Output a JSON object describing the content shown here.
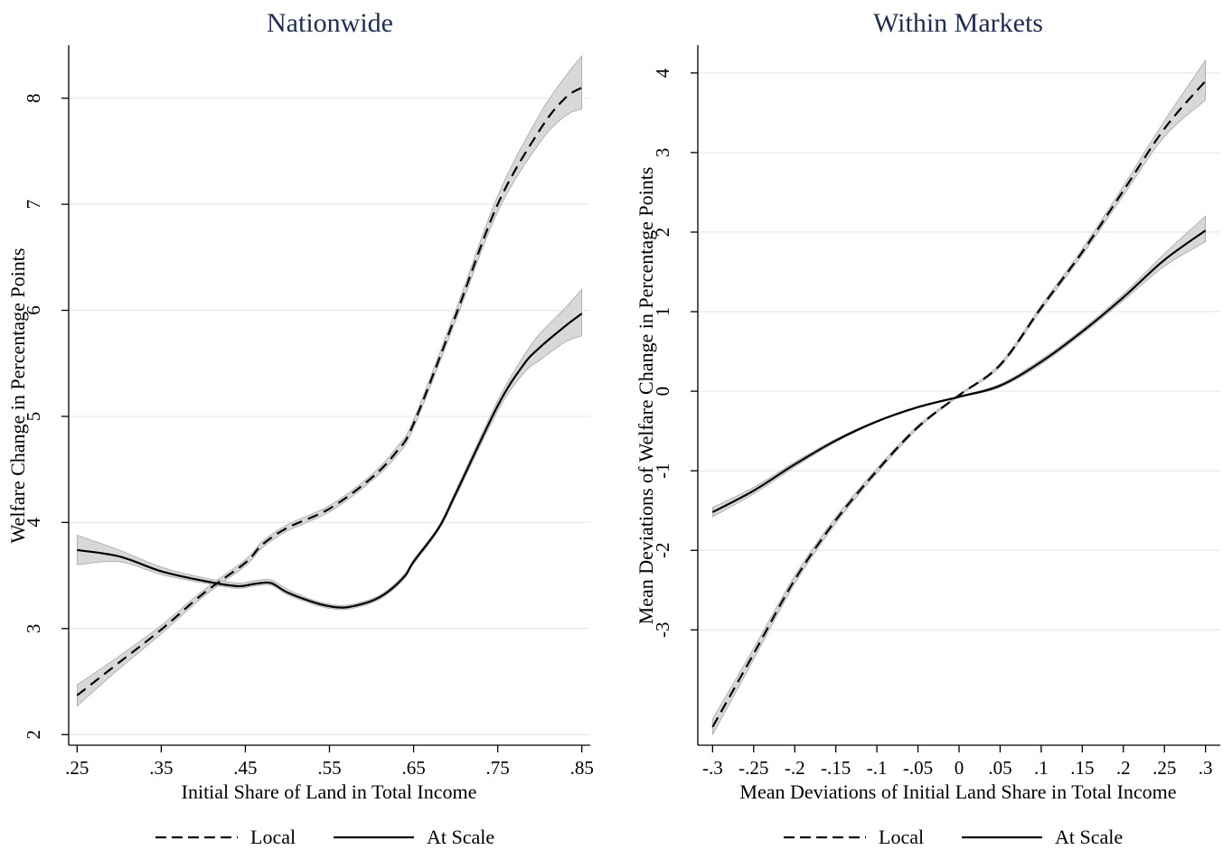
{
  "chart_data": [
    {
      "type": "line",
      "title": "Nationwide",
      "xlabel": "Initial Share of Land in Total Income",
      "ylabel": "Welfare Change in Percentage Points",
      "xlim": [
        0.24,
        0.86
      ],
      "ylim": [
        1.9,
        8.5
      ],
      "x_ticks": [
        0.25,
        0.35,
        0.45,
        0.55,
        0.65,
        0.75,
        0.85
      ],
      "x_tick_labels": [
        ".25",
        ".35",
        ".45",
        ".55",
        ".65",
        ".75",
        ".85"
      ],
      "y_ticks": [
        2,
        3,
        4,
        5,
        6,
        7,
        8
      ],
      "y_tick_labels": [
        "2",
        "3",
        "4",
        "5",
        "6",
        "7",
        "8"
      ],
      "grid": true,
      "legend_position": "bottom",
      "series": [
        {
          "name": "Local",
          "style": "dashed",
          "x": [
            0.25,
            0.3,
            0.35,
            0.4,
            0.45,
            0.47,
            0.5,
            0.55,
            0.6,
            0.63,
            0.65,
            0.7,
            0.75,
            0.8,
            0.83,
            0.85
          ],
          "values": [
            2.37,
            2.68,
            2.99,
            3.33,
            3.62,
            3.79,
            3.95,
            4.13,
            4.42,
            4.67,
            4.93,
            5.95,
            7.0,
            7.7,
            8.0,
            8.1
          ],
          "ci_lower": [
            2.27,
            2.62,
            2.95,
            3.3,
            3.59,
            3.76,
            3.92,
            4.1,
            4.39,
            4.63,
            4.89,
            5.9,
            6.93,
            7.58,
            7.83,
            7.9
          ],
          "ci_upper": [
            2.47,
            2.74,
            3.03,
            3.36,
            3.65,
            3.82,
            3.98,
            4.16,
            4.45,
            4.71,
            4.97,
            6.0,
            7.08,
            7.85,
            8.2,
            8.4
          ]
        },
        {
          "name": "At Scale",
          "style": "solid",
          "x": [
            0.25,
            0.3,
            0.35,
            0.4,
            0.44,
            0.46,
            0.48,
            0.5,
            0.53,
            0.55,
            0.57,
            0.6,
            0.62,
            0.64,
            0.65,
            0.68,
            0.7,
            0.75,
            0.78,
            0.8,
            0.83,
            0.85
          ],
          "values": [
            3.74,
            3.68,
            3.54,
            3.45,
            3.4,
            3.42,
            3.43,
            3.34,
            3.25,
            3.21,
            3.2,
            3.26,
            3.35,
            3.5,
            3.63,
            3.95,
            4.27,
            5.1,
            5.48,
            5.65,
            5.85,
            5.97
          ],
          "ci_lower": [
            3.6,
            3.63,
            3.51,
            3.43,
            3.38,
            3.4,
            3.41,
            3.32,
            3.23,
            3.19,
            3.18,
            3.24,
            3.33,
            3.48,
            3.61,
            3.93,
            4.24,
            5.05,
            5.4,
            5.53,
            5.7,
            5.76
          ],
          "ci_upper": [
            3.88,
            3.74,
            3.58,
            3.48,
            3.43,
            3.45,
            3.46,
            3.37,
            3.27,
            3.23,
            3.22,
            3.28,
            3.37,
            3.52,
            3.65,
            3.97,
            4.3,
            5.15,
            5.56,
            5.78,
            6.02,
            6.2
          ]
        }
      ]
    },
    {
      "type": "line",
      "title": "Within Markets",
      "xlabel": "Mean Deviations of Initial Land Share in Total Income",
      "ylabel": "Mean Deviations of Welfare Change in Percentage Points",
      "xlim": [
        -0.318,
        0.318
      ],
      "ylim": [
        -4.45,
        4.35
      ],
      "x_ticks": [
        -0.3,
        -0.25,
        -0.2,
        -0.15,
        -0.1,
        -0.05,
        0,
        0.05,
        0.1,
        0.15,
        0.2,
        0.25,
        0.3
      ],
      "x_tick_labels": [
        "-.3",
        "-.25",
        "-.2",
        "-.15",
        "-.1",
        "-.05",
        "0",
        ".05",
        ".1",
        ".15",
        ".2",
        ".25",
        ".3"
      ],
      "y_ticks": [
        -3,
        -2,
        -1,
        0,
        1,
        2,
        3,
        4
      ],
      "y_tick_labels": [
        "-3",
        "-2",
        "-1",
        "0",
        "1",
        "2",
        "3",
        "4"
      ],
      "grid": true,
      "legend_position": "bottom",
      "series": [
        {
          "name": "Local",
          "style": "dashed",
          "x": [
            -0.3,
            -0.25,
            -0.2,
            -0.15,
            -0.1,
            -0.05,
            0,
            0.05,
            0.1,
            0.15,
            0.2,
            0.25,
            0.3
          ],
          "values": [
            -4.22,
            -3.3,
            -2.37,
            -1.62,
            -1.0,
            -0.45,
            -0.05,
            0.33,
            1.05,
            1.75,
            2.52,
            3.3,
            3.9
          ],
          "ci_lower": [
            -4.32,
            -3.37,
            -2.42,
            -1.66,
            -1.03,
            -0.47,
            -0.06,
            0.31,
            1.02,
            1.71,
            2.46,
            3.2,
            3.66
          ],
          "ci_upper": [
            -4.12,
            -3.23,
            -2.32,
            -1.58,
            -0.97,
            -0.43,
            -0.04,
            0.35,
            1.08,
            1.79,
            2.58,
            3.4,
            4.16
          ]
        },
        {
          "name": "At Scale",
          "style": "solid",
          "x": [
            -0.3,
            -0.25,
            -0.2,
            -0.15,
            -0.1,
            -0.05,
            0,
            0.05,
            0.1,
            0.15,
            0.2,
            0.25,
            0.3
          ],
          "values": [
            -1.52,
            -1.25,
            -0.92,
            -0.62,
            -0.38,
            -0.2,
            -0.07,
            0.07,
            0.37,
            0.75,
            1.18,
            1.65,
            2.02
          ],
          "ci_lower": [
            -1.58,
            -1.29,
            -0.95,
            -0.64,
            -0.39,
            -0.21,
            -0.08,
            0.05,
            0.34,
            0.72,
            1.14,
            1.57,
            1.88
          ],
          "ci_upper": [
            -1.46,
            -1.21,
            -0.89,
            -0.6,
            -0.37,
            -0.19,
            -0.06,
            0.09,
            0.4,
            0.78,
            1.22,
            1.73,
            2.2
          ]
        }
      ]
    }
  ]
}
